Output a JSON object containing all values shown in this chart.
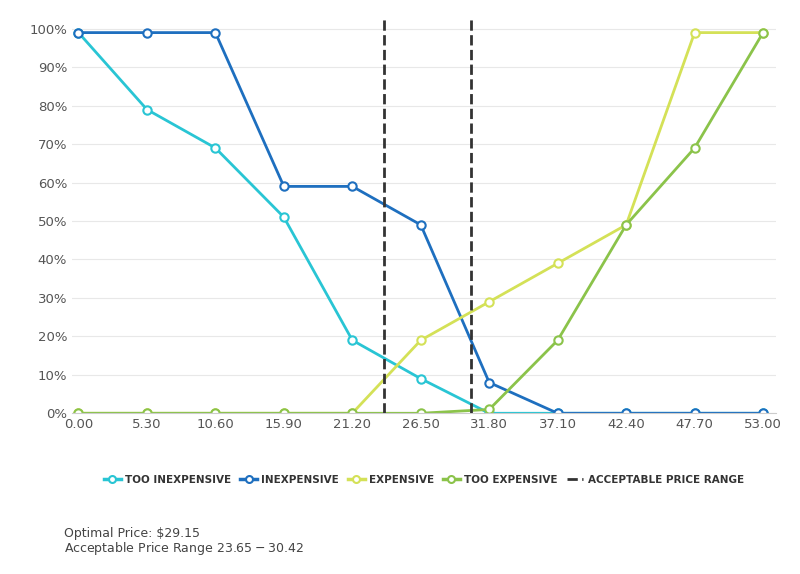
{
  "x_values": [
    0.0,
    5.3,
    10.6,
    15.9,
    21.2,
    26.5,
    31.8,
    37.1,
    42.4,
    47.7,
    53.0
  ],
  "too_inexpensive": [
    99,
    79,
    69,
    51,
    19,
    9,
    0,
    0,
    0,
    0,
    0
  ],
  "inexpensive": [
    99,
    99,
    99,
    59,
    59,
    49,
    8,
    0,
    0,
    0,
    0
  ],
  "expensive": [
    0,
    0,
    0,
    0,
    0,
    19,
    29,
    39,
    49,
    99,
    99
  ],
  "too_expensive": [
    0,
    0,
    0,
    0,
    0,
    0,
    1,
    19,
    49,
    69,
    99
  ],
  "vline1": 23.65,
  "vline2": 30.42,
  "color_too_inexpensive": "#29C5D4",
  "color_inexpensive": "#1E6FBF",
  "color_expensive": "#D4E157",
  "color_too_expensive": "#8BC34A",
  "color_vline": "#333333",
  "ylim": [
    0,
    103
  ],
  "xlim": [
    -0.5,
    54
  ],
  "bg_color": "#FFFFFF",
  "annotation_line1": "Optimal Price: $29.15",
  "annotation_line2": "Acceptable Price Range $23.65 - $30.42",
  "legend_labels": [
    "TOO INEXPENSIVE",
    "INEXPENSIVE",
    "EXPENSIVE",
    "TOO EXPENSIVE",
    "ACCEPTABLE PRICE RANGE"
  ]
}
